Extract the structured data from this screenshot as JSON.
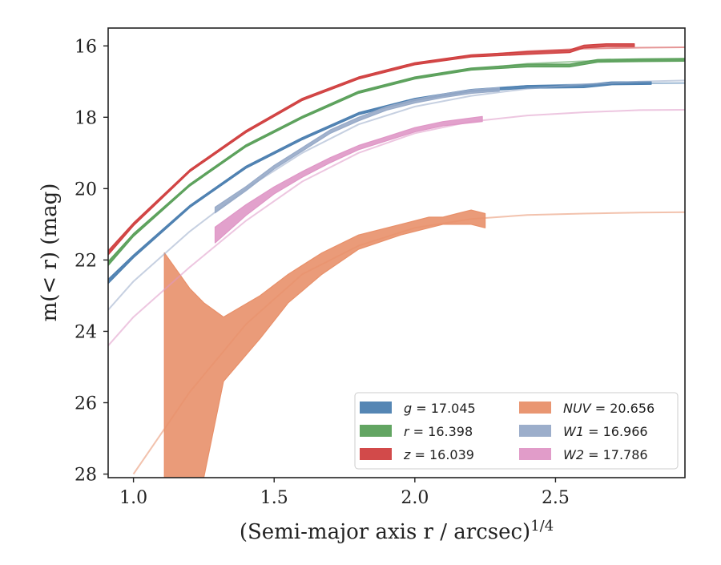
{
  "chart_data": {
    "type": "area",
    "xlabel": "(Semi-major axis r / arcsec)",
    "xlabel_sup": "1/4",
    "ylabel": "m(< r) (mag)",
    "xlim": [
      0.91,
      2.96
    ],
    "ylim": [
      28.1,
      15.5
    ],
    "y_inverted": true,
    "grid": false,
    "legend_position": "lower-right",
    "x_ticks": [
      1.0,
      1.5,
      2.0,
      2.5
    ],
    "x_tick_labels": [
      "1.0",
      "1.5",
      "2.0",
      "2.5"
    ],
    "y_ticks": [
      16,
      18,
      20,
      22,
      24,
      26,
      28
    ],
    "y_tick_labels": [
      "16",
      "18",
      "20",
      "22",
      "24",
      "26",
      "28"
    ],
    "series": [
      {
        "name": "g = 17.045",
        "legend_var": "g",
        "legend_value": "17.045",
        "color": "#4c7fb0",
        "model_x": [
          0.91,
          1.0,
          1.2,
          1.4,
          1.6,
          1.8,
          2.0,
          2.2,
          2.4,
          2.6,
          2.8,
          2.96
        ],
        "model_y": [
          22.6,
          21.9,
          20.5,
          19.4,
          18.6,
          17.9,
          17.5,
          17.25,
          17.12,
          17.08,
          17.05,
          17.04
        ],
        "obs_x": [
          0.91,
          1.0,
          1.2,
          1.4,
          1.6,
          1.8,
          2.0,
          2.2,
          2.4,
          2.6,
          2.7,
          2.84
        ],
        "obs_y": [
          22.6,
          21.9,
          20.5,
          19.4,
          18.6,
          17.9,
          17.5,
          17.25,
          17.15,
          17.13,
          17.05,
          17.04
        ],
        "obs_err": [
          0.06,
          0.04,
          0.03,
          0.03,
          0.03,
          0.03,
          0.03,
          0.03,
          0.04,
          0.04,
          0.04,
          0.04
        ]
      },
      {
        "name": "r = 16.398",
        "legend_var": "r",
        "legend_value": "16.398",
        "color": "#5aa05a",
        "model_x": [
          0.91,
          1.0,
          1.2,
          1.4,
          1.6,
          1.8,
          2.0,
          2.2,
          2.4,
          2.6,
          2.8,
          2.96
        ],
        "model_y": [
          22.1,
          21.3,
          19.9,
          18.8,
          18.0,
          17.3,
          16.9,
          16.65,
          16.5,
          16.43,
          16.4,
          16.39
        ],
        "obs_x": [
          0.91,
          1.0,
          1.2,
          1.4,
          1.6,
          1.8,
          2.0,
          2.2,
          2.4,
          2.55,
          2.65,
          2.8,
          2.96
        ],
        "obs_y": [
          22.1,
          21.3,
          19.9,
          18.8,
          18.0,
          17.3,
          16.9,
          16.65,
          16.55,
          16.55,
          16.42,
          16.4,
          16.39
        ],
        "obs_err": [
          0.06,
          0.04,
          0.03,
          0.03,
          0.03,
          0.03,
          0.03,
          0.03,
          0.04,
          0.04,
          0.04,
          0.04,
          0.04
        ]
      },
      {
        "name": "z = 16.039",
        "legend_var": "z",
        "legend_value": "16.039",
        "color": "#d04040",
        "model_x": [
          0.91,
          1.0,
          1.2,
          1.4,
          1.6,
          1.8,
          2.0,
          2.2,
          2.4,
          2.6,
          2.8,
          2.96
        ],
        "model_y": [
          21.8,
          21.0,
          19.5,
          18.4,
          17.5,
          16.9,
          16.5,
          16.28,
          16.15,
          16.08,
          16.05,
          16.04
        ],
        "obs_x": [
          0.91,
          1.0,
          1.2,
          1.4,
          1.6,
          1.8,
          2.0,
          2.2,
          2.4,
          2.55,
          2.6,
          2.68,
          2.78
        ],
        "obs_y": [
          21.8,
          21.0,
          19.5,
          18.4,
          17.5,
          16.9,
          16.5,
          16.28,
          16.2,
          16.15,
          16.02,
          15.98,
          15.98
        ],
        "obs_err": [
          0.06,
          0.04,
          0.03,
          0.03,
          0.03,
          0.03,
          0.03,
          0.03,
          0.04,
          0.04,
          0.04,
          0.04,
          0.04
        ]
      },
      {
        "name": "NUV = 20.656",
        "legend_var": "NUV",
        "legend_value": "20.656",
        "color": "#e8906a",
        "model_x": [
          1.0,
          1.2,
          1.4,
          1.6,
          1.8,
          2.0,
          2.2,
          2.4,
          2.6,
          2.8,
          2.96
        ],
        "model_y": [
          28.0,
          25.7,
          23.8,
          22.4,
          21.6,
          21.1,
          20.85,
          20.74,
          20.7,
          20.67,
          20.66
        ],
        "obs_x": [
          1.11,
          1.2,
          1.25,
          1.32,
          1.45,
          1.55,
          1.67,
          1.8,
          1.95,
          2.05,
          2.1,
          2.15,
          2.2,
          2.25
        ],
        "obs_upper": [
          21.8,
          22.8,
          23.2,
          23.6,
          23.0,
          22.4,
          21.8,
          21.3,
          21.0,
          20.8,
          20.8,
          20.7,
          20.6,
          20.7
        ],
        "obs_lower": [
          28.1,
          28.1,
          28.1,
          25.4,
          24.2,
          23.2,
          22.4,
          21.7,
          21.3,
          21.1,
          21.0,
          21.0,
          21.0,
          21.1
        ]
      },
      {
        "name": "W1 = 16.966",
        "legend_var": "W1",
        "legend_value": "16.966",
        "color": "#97aac8",
        "model_x": [
          0.91,
          1.0,
          1.2,
          1.4,
          1.6,
          1.8,
          2.0,
          2.2,
          2.4,
          2.6,
          2.8,
          2.96
        ],
        "model_y": [
          23.4,
          22.6,
          21.2,
          20.0,
          19.0,
          18.2,
          17.7,
          17.4,
          17.2,
          17.08,
          17.0,
          16.97
        ],
        "obs_x": [
          1.29,
          1.4,
          1.5,
          1.6,
          1.7,
          1.8,
          1.9,
          2.0,
          2.1,
          2.2,
          2.3
        ],
        "obs_y": [
          20.6,
          20.0,
          19.4,
          18.9,
          18.4,
          18.05,
          17.75,
          17.55,
          17.4,
          17.28,
          17.22
        ],
        "obs_err": [
          0.08,
          0.06,
          0.05,
          0.05,
          0.05,
          0.05,
          0.05,
          0.05,
          0.05,
          0.05,
          0.05
        ]
      },
      {
        "name": "W2 = 17.786",
        "legend_var": "W2",
        "legend_value": "17.786",
        "color": "#df97c6",
        "model_x": [
          0.91,
          1.0,
          1.2,
          1.4,
          1.6,
          1.8,
          2.0,
          2.2,
          2.4,
          2.6,
          2.8,
          2.96
        ],
        "model_y": [
          24.4,
          23.6,
          22.2,
          20.9,
          19.8,
          19.0,
          18.45,
          18.12,
          17.95,
          17.86,
          17.8,
          17.79
        ],
        "obs_x": [
          1.29,
          1.4,
          1.5,
          1.6,
          1.7,
          1.8,
          1.9,
          2.0,
          2.1,
          2.24
        ],
        "obs_y": [
          21.3,
          20.6,
          20.05,
          19.6,
          19.2,
          18.85,
          18.6,
          18.35,
          18.18,
          18.05
        ],
        "obs_err": [
          0.22,
          0.15,
          0.1,
          0.08,
          0.07,
          0.06,
          0.06,
          0.06,
          0.06,
          0.07
        ]
      }
    ]
  }
}
